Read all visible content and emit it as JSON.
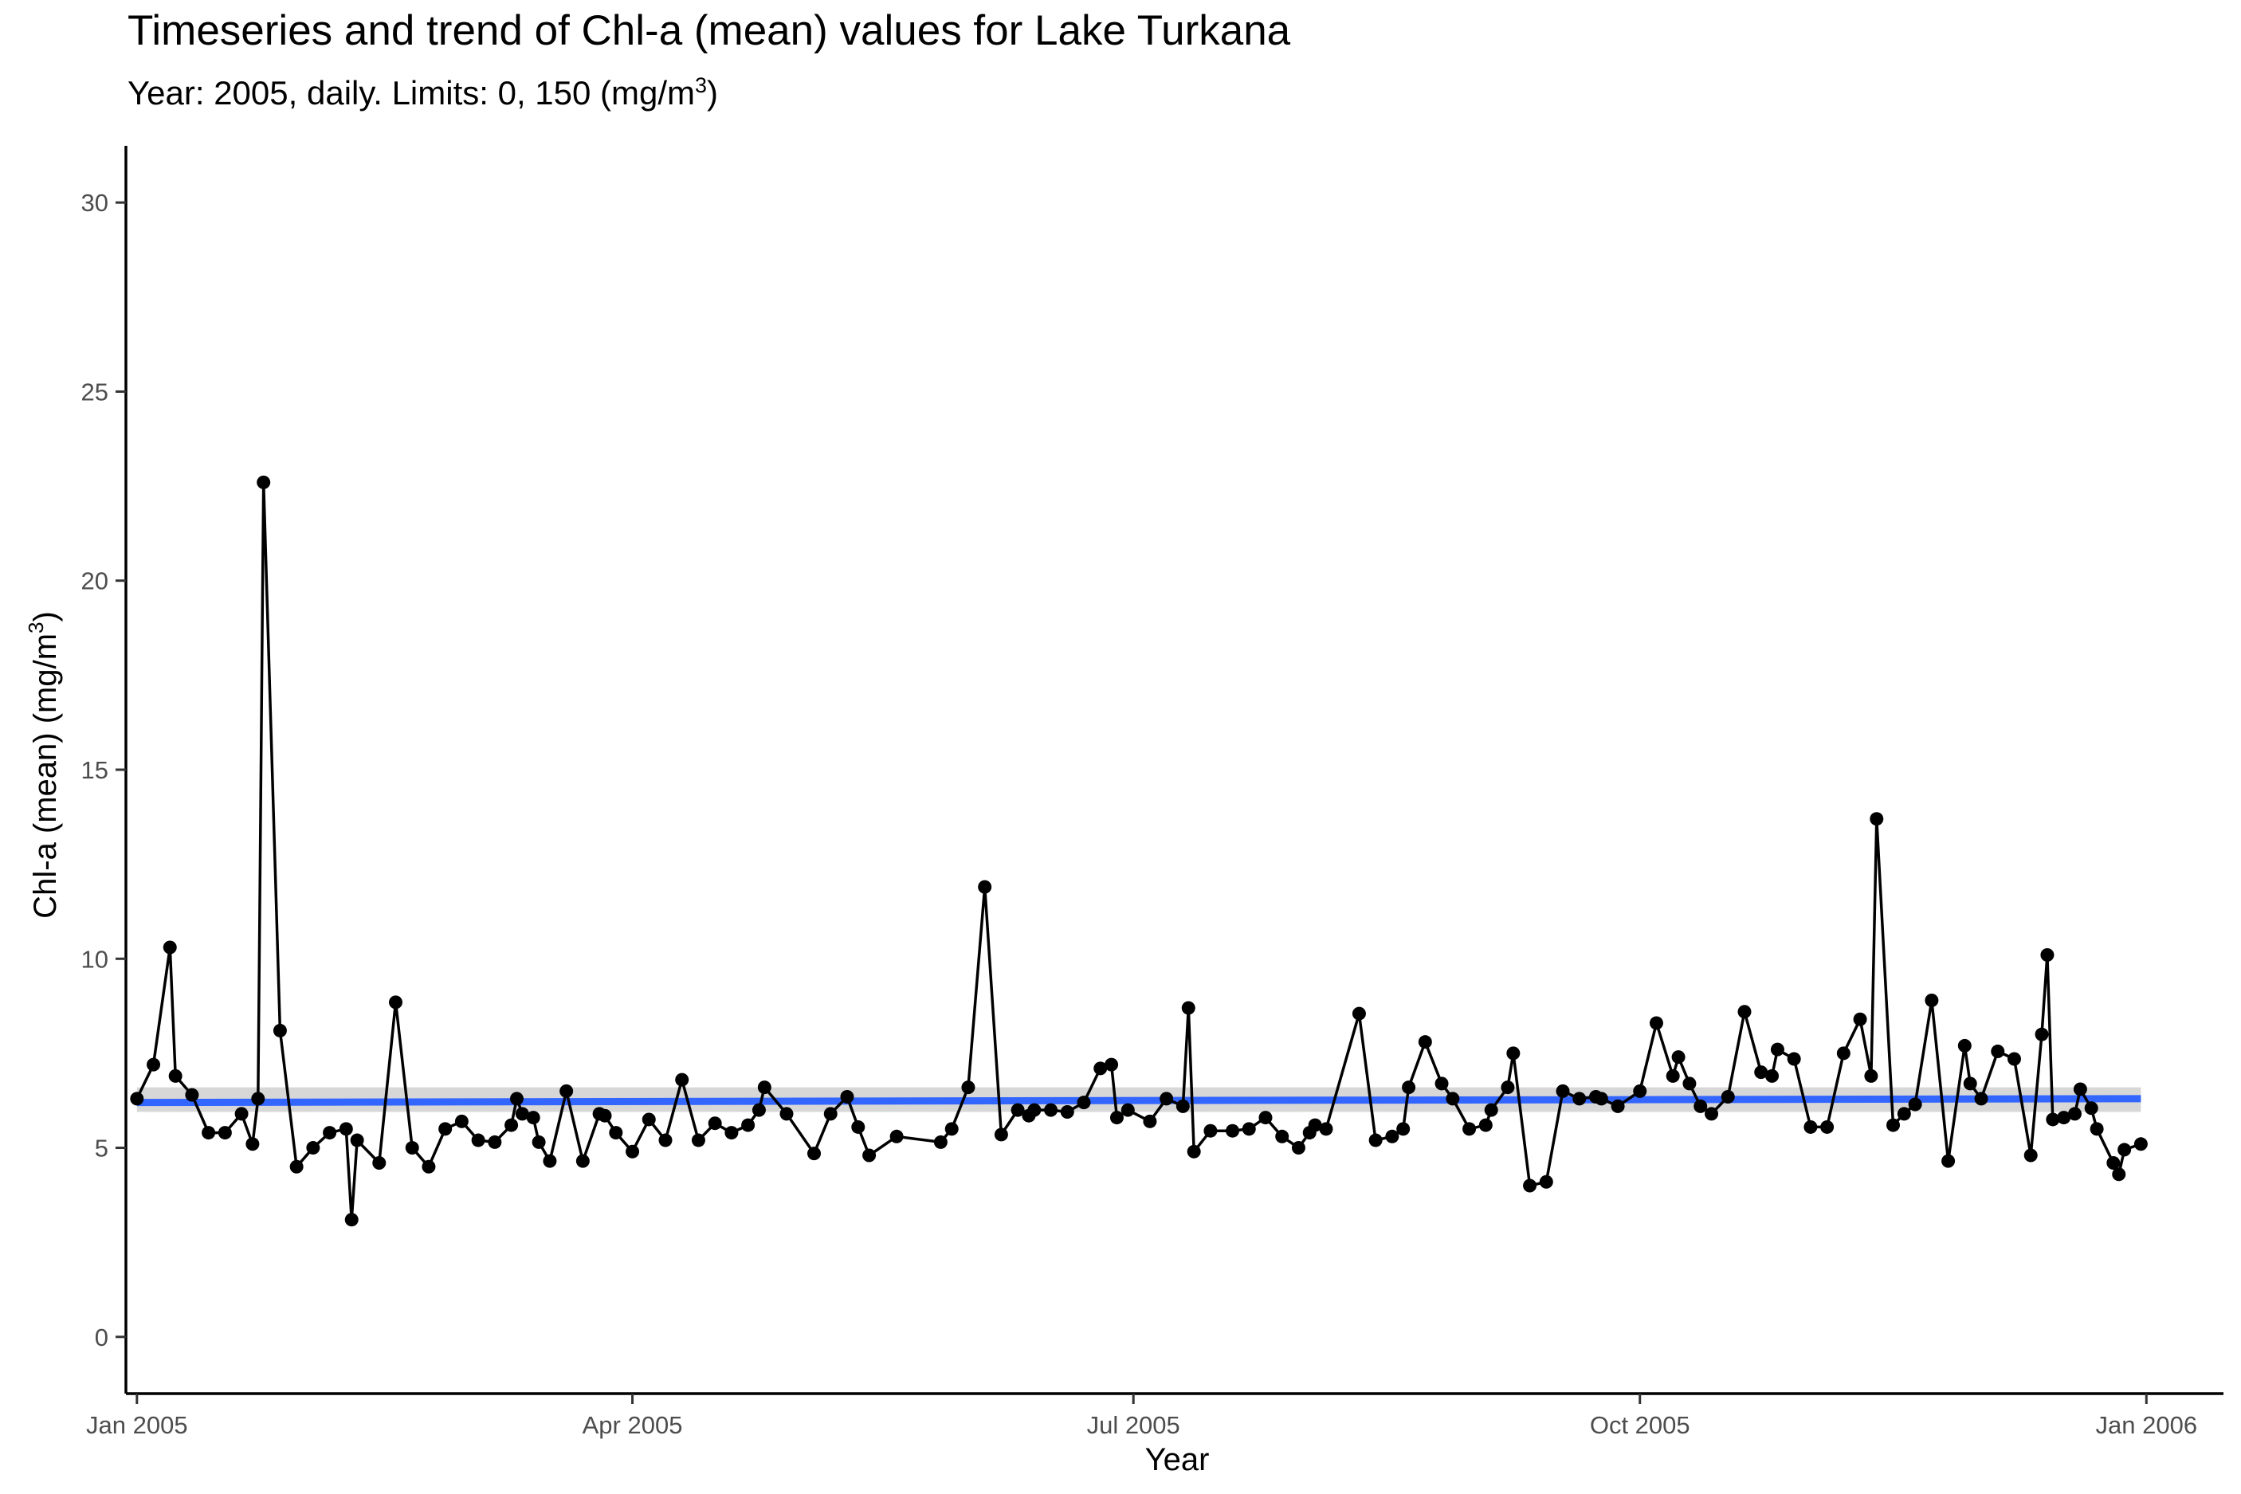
{
  "chart_data": {
    "type": "line",
    "title": "Timeseries and trend of Chl-a (mean) values for Lake Turkana",
    "subtitle": "Year: 2005, daily. Limits: 0, 150 (mg/m",
    "subtitle_sup": "3",
    "subtitle_end": ")",
    "xlabel": "Year",
    "ylabel": "Chl-a (mean) (mg/m",
    "ylabel_sup": "3",
    "ylabel_end": ")",
    "xlim": [
      "2004-12-30",
      "2006-01-15"
    ],
    "ylim": [
      -1.5,
      31.5
    ],
    "x_ticks": [
      {
        "date": "2005-01-01",
        "label": "Jan 2005"
      },
      {
        "date": "2005-04-01",
        "label": "Apr 2005"
      },
      {
        "date": "2005-07-01",
        "label": "Jul 2005"
      },
      {
        "date": "2005-10-01",
        "label": "Oct 2005"
      },
      {
        "date": "2006-01-01",
        "label": "Jan 2006"
      }
    ],
    "y_ticks": [
      0,
      5,
      10,
      15,
      20,
      25,
      30
    ],
    "grid": false,
    "legend": "none",
    "trend": {
      "name": "",
      "y_start": 6.2,
      "y_end": 6.3,
      "ci_low": 5.95,
      "ci_high": 6.6,
      "color": "#3366ff",
      "band_color": "#bdbdbd"
    },
    "series": [
      {
        "name": "",
        "color": "#000000",
        "x": [
          "2005-01-01",
          "2005-01-04",
          "2005-01-07",
          "2005-01-08",
          "2005-01-11",
          "2005-01-14",
          "2005-01-17",
          "2005-01-20",
          "2005-01-22",
          "2005-01-23",
          "2005-01-24",
          "2005-01-27",
          "2005-01-30",
          "2005-02-02",
          "2005-02-05",
          "2005-02-08",
          "2005-02-09",
          "2005-02-10",
          "2005-02-14",
          "2005-02-17",
          "2005-02-20",
          "2005-02-23",
          "2005-02-26",
          "2005-03-01",
          "2005-03-04",
          "2005-03-07",
          "2005-03-10",
          "2005-03-11",
          "2005-03-12",
          "2005-03-14",
          "2005-03-15",
          "2005-03-17",
          "2005-03-20",
          "2005-03-23",
          "2005-03-26",
          "2005-03-27",
          "2005-03-29",
          "2005-04-01",
          "2005-04-04",
          "2005-04-07",
          "2005-04-10",
          "2005-04-13",
          "2005-04-16",
          "2005-04-19",
          "2005-04-22",
          "2005-04-24",
          "2005-04-25",
          "2005-04-29",
          "2005-05-04",
          "2005-05-07",
          "2005-05-10",
          "2005-05-12",
          "2005-05-14",
          "2005-05-19",
          "2005-05-27",
          "2005-05-29",
          "2005-06-01",
          "2005-06-04",
          "2005-06-07",
          "2005-06-10",
          "2005-06-12",
          "2005-06-13",
          "2005-06-16",
          "2005-06-19",
          "2005-06-22",
          "2005-06-25",
          "2005-06-27",
          "2005-06-28",
          "2005-06-30",
          "2005-07-04",
          "2005-07-07",
          "2005-07-10",
          "2005-07-11",
          "2005-07-12",
          "2005-07-15",
          "2005-07-19",
          "2005-07-22",
          "2005-07-25",
          "2005-07-28",
          "2005-07-31",
          "2005-08-02",
          "2005-08-03",
          "2005-08-05",
          "2005-08-11",
          "2005-08-14",
          "2005-08-17",
          "2005-08-19",
          "2005-08-20",
          "2005-08-23",
          "2005-08-26",
          "2005-08-28",
          "2005-08-31",
          "2005-09-03",
          "2005-09-04",
          "2005-09-07",
          "2005-09-08",
          "2005-09-11",
          "2005-09-14",
          "2005-09-17",
          "2005-09-20",
          "2005-09-23",
          "2005-09-24",
          "2005-09-27",
          "2005-10-01",
          "2005-10-04",
          "2005-10-07",
          "2005-10-08",
          "2005-10-10",
          "2005-10-12",
          "2005-10-14",
          "2005-10-17",
          "2005-10-20",
          "2005-10-23",
          "2005-10-25",
          "2005-10-26",
          "2005-10-29",
          "2005-11-01",
          "2005-11-04",
          "2005-11-07",
          "2005-11-10",
          "2005-11-12",
          "2005-11-13",
          "2005-11-16",
          "2005-11-18",
          "2005-11-20",
          "2005-11-23",
          "2005-11-26",
          "2005-11-29",
          "2005-11-30",
          "2005-12-02",
          "2005-12-05",
          "2005-12-08",
          "2005-12-11",
          "2005-12-13",
          "2005-12-14",
          "2005-12-15",
          "2005-12-17",
          "2005-12-19",
          "2005-12-20",
          "2005-12-22",
          "2005-12-23",
          "2005-12-26",
          "2005-12-27",
          "2005-12-28",
          "2005-12-31"
        ],
        "y": [
          6.3,
          7.2,
          10.3,
          6.9,
          6.4,
          5.4,
          5.4,
          5.9,
          5.1,
          6.3,
          22.6,
          8.1,
          4.5,
          5.0,
          5.4,
          5.5,
          3.1,
          5.2,
          4.6,
          8.85,
          5.0,
          4.5,
          5.5,
          5.7,
          5.2,
          5.15,
          5.6,
          6.3,
          5.9,
          5.8,
          5.15,
          4.65,
          6.5,
          4.65,
          5.9,
          5.85,
          5.4,
          4.9,
          5.75,
          5.2,
          6.8,
          5.2,
          5.65,
          5.4,
          5.6,
          6.0,
          6.6,
          5.9,
          4.85,
          5.9,
          6.35,
          5.55,
          4.8,
          5.3,
          5.15,
          5.5,
          6.6,
          11.9,
          5.35,
          6.0,
          5.85,
          6.0,
          6.0,
          5.95,
          6.2,
          7.1,
          7.2,
          5.8,
          6.0,
          5.7,
          6.3,
          6.1,
          8.7,
          4.9,
          5.45,
          5.45,
          5.5,
          5.8,
          5.3,
          5.0,
          5.4,
          5.6,
          5.5,
          8.55,
          5.2,
          5.3,
          5.5,
          6.6,
          7.8,
          6.7,
          6.3,
          5.5,
          5.6,
          6.0,
          6.6,
          7.5,
          4.0,
          4.1,
          6.5,
          6.3,
          6.35,
          6.3,
          6.1,
          6.5,
          8.3,
          6.9,
          7.4,
          6.7,
          6.1,
          5.9,
          6.35,
          8.6,
          7.0,
          6.9,
          7.6,
          7.35,
          5.55,
          5.55,
          7.5,
          8.4,
          6.9,
          13.7,
          5.6,
          5.9,
          6.15,
          8.9,
          4.65,
          7.7,
          6.7,
          6.3,
          7.55,
          7.35,
          4.8,
          8.0,
          10.1,
          5.75,
          5.8,
          5.9,
          6.55,
          6.05,
          5.5,
          4.6,
          4.3,
          4.95,
          5.1
        ]
      }
    ]
  }
}
